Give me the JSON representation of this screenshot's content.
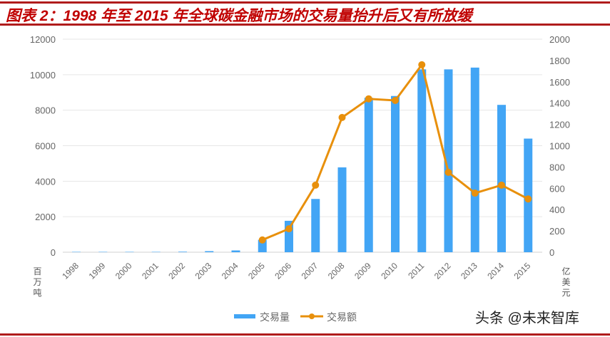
{
  "title": "图表 2：1998 年至 2015 年全球碳金融市场的交易量抬升后又有所放缓",
  "watermark": "头条 @未来智库",
  "chart_data": {
    "type": "bar+line",
    "categories": [
      "1998",
      "1999",
      "2000",
      "2001",
      "2002",
      "2003",
      "2004",
      "2005",
      "2006",
      "2007",
      "2008",
      "2009",
      "2010",
      "2011",
      "2012",
      "2013",
      "2014",
      "2015"
    ],
    "series": [
      {
        "name": "交易量",
        "type": "bar",
        "axis": "left",
        "color": "#42a5f5",
        "values": [
          20,
          20,
          20,
          20,
          30,
          60,
          100,
          700,
          1770,
          3000,
          4780,
          8700,
          8800,
          10300,
          10300,
          10400,
          8300,
          6400
        ]
      },
      {
        "name": "交易额",
        "type": "line",
        "axis": "right",
        "color": "#e8900c",
        "values": [
          null,
          null,
          null,
          null,
          null,
          null,
          null,
          115,
          220,
          630,
          1265,
          1440,
          1425,
          1760,
          750,
          555,
          630,
          500
        ]
      }
    ],
    "ylabel_left": "百万吨",
    "ylabel_right": "亿美元",
    "ylim_left": [
      0,
      12000
    ],
    "yticks_left": [
      0,
      2000,
      4000,
      6000,
      8000,
      10000,
      12000
    ],
    "ylim_right": [
      0,
      2000
    ],
    "yticks_right": [
      0,
      200,
      400,
      600,
      800,
      1000,
      1200,
      1400,
      1600,
      1800,
      2000
    ],
    "grid": true,
    "legend": "bottom"
  }
}
